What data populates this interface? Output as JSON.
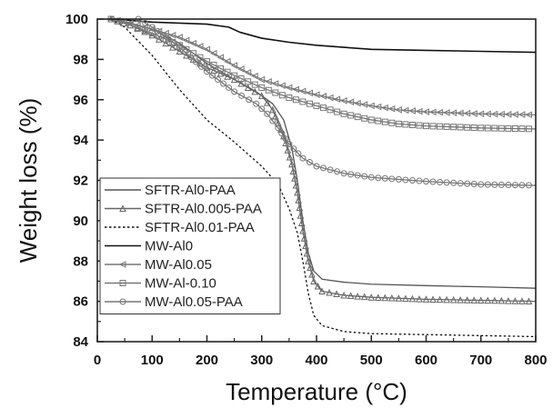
{
  "chart_data": {
    "type": "line",
    "title": "",
    "xlabel": "Temperature (°C)",
    "ylabel": "Weight loss (%)",
    "xlim": [
      0,
      800
    ],
    "ylim": [
      84,
      100
    ],
    "xticks": [
      0,
      100,
      200,
      300,
      400,
      500,
      600,
      700,
      800
    ],
    "yticks": [
      84,
      86,
      88,
      90,
      92,
      94,
      96,
      98,
      100
    ],
    "grid": false,
    "legend": "bottom-left",
    "series": [
      {
        "name": "SFTR-Al0-PAA",
        "color": "#555555",
        "style": "solid",
        "marker": "none",
        "points": [
          [
            25,
            100
          ],
          [
            60,
            99.8
          ],
          [
            100,
            99.5
          ],
          [
            150,
            98.8
          ],
          [
            200,
            97.8
          ],
          [
            250,
            97.0
          ],
          [
            290,
            96.4
          ],
          [
            320,
            95.8
          ],
          [
            340,
            95.0
          ],
          [
            355,
            93.6
          ],
          [
            365,
            92.0
          ],
          [
            375,
            90.0
          ],
          [
            385,
            88.4
          ],
          [
            395,
            87.5
          ],
          [
            410,
            87.1
          ],
          [
            450,
            86.95
          ],
          [
            500,
            86.85
          ],
          [
            600,
            86.78
          ],
          [
            700,
            86.72
          ],
          [
            800,
            86.65
          ]
        ]
      },
      {
        "name": "SFTR-Al0.005-PAA",
        "color": "#666666",
        "style": "solid",
        "marker": "triangle",
        "points": [
          [
            25,
            100
          ],
          [
            60,
            99.7
          ],
          [
            100,
            99.2
          ],
          [
            150,
            98.4
          ],
          [
            200,
            97.6
          ],
          [
            250,
            97.0
          ],
          [
            300,
            96.2
          ],
          [
            320,
            95.5
          ],
          [
            340,
            94.2
          ],
          [
            355,
            92.8
          ],
          [
            365,
            91.4
          ],
          [
            375,
            89.5
          ],
          [
            385,
            88.0
          ],
          [
            395,
            87.0
          ],
          [
            410,
            86.5
          ],
          [
            450,
            86.3
          ],
          [
            500,
            86.2
          ],
          [
            600,
            86.1
          ],
          [
            700,
            86.05
          ],
          [
            800,
            86.0
          ]
        ]
      },
      {
        "name": "SFTR-Al0.01-PAA",
        "color": "#111111",
        "style": "dotted",
        "marker": "none",
        "points": [
          [
            25,
            100
          ],
          [
            50,
            99.6
          ],
          [
            75,
            98.9
          ],
          [
            100,
            98.2
          ],
          [
            150,
            96.5
          ],
          [
            200,
            95.0
          ],
          [
            250,
            93.9
          ],
          [
            300,
            92.7
          ],
          [
            330,
            91.8
          ],
          [
            350,
            90.6
          ],
          [
            365,
            89.4
          ],
          [
            375,
            88.0
          ],
          [
            385,
            86.4
          ],
          [
            395,
            85.3
          ],
          [
            410,
            84.8
          ],
          [
            450,
            84.5
          ],
          [
            500,
            84.4
          ],
          [
            600,
            84.35
          ],
          [
            700,
            84.3
          ],
          [
            800,
            84.25
          ]
        ]
      },
      {
        "name": "MW-Al0",
        "color": "#111111",
        "style": "solid",
        "marker": "none",
        "points": [
          [
            25,
            100
          ],
          [
            100,
            99.85
          ],
          [
            200,
            99.75
          ],
          [
            240,
            99.6
          ],
          [
            260,
            99.35
          ],
          [
            300,
            99.05
          ],
          [
            350,
            98.85
          ],
          [
            400,
            98.7
          ],
          [
            450,
            98.6
          ],
          [
            500,
            98.5
          ],
          [
            600,
            98.45
          ],
          [
            700,
            98.4
          ],
          [
            800,
            98.35
          ]
        ]
      },
      {
        "name": "MW-Al0.05",
        "color": "#777777",
        "style": "solid",
        "marker": "triangle-left",
        "points": [
          [
            25,
            100
          ],
          [
            60,
            99.8
          ],
          [
            100,
            99.5
          ],
          [
            150,
            99.1
          ],
          [
            200,
            98.5
          ],
          [
            250,
            97.7
          ],
          [
            300,
            97.0
          ],
          [
            350,
            96.6
          ],
          [
            400,
            96.25
          ],
          [
            450,
            95.95
          ],
          [
            500,
            95.7
          ],
          [
            550,
            95.5
          ],
          [
            600,
            95.4
          ],
          [
            700,
            95.3
          ],
          [
            800,
            95.25
          ]
        ]
      },
      {
        "name": "MW-Al-0.10",
        "color": "#777777",
        "style": "solid",
        "marker": "square",
        "points": [
          [
            25,
            100
          ],
          [
            60,
            99.7
          ],
          [
            100,
            99.3
          ],
          [
            150,
            98.7
          ],
          [
            200,
            97.9
          ],
          [
            250,
            97.2
          ],
          [
            300,
            96.6
          ],
          [
            350,
            96.1
          ],
          [
            400,
            95.7
          ],
          [
            450,
            95.3
          ],
          [
            500,
            95.0
          ],
          [
            550,
            94.8
          ],
          [
            600,
            94.7
          ],
          [
            700,
            94.6
          ],
          [
            800,
            94.55
          ]
        ]
      },
      {
        "name": "MW-Al0.05-PAA",
        "color": "#777777",
        "style": "solid",
        "marker": "circle",
        "points": [
          [
            75,
            100
          ],
          [
            100,
            99.6
          ],
          [
            150,
            98.6
          ],
          [
            200,
            97.4
          ],
          [
            250,
            96.4
          ],
          [
            290,
            95.8
          ],
          [
            310,
            95.3
          ],
          [
            330,
            94.6
          ],
          [
            350,
            93.8
          ],
          [
            375,
            93.1
          ],
          [
            400,
            92.7
          ],
          [
            450,
            92.35
          ],
          [
            500,
            92.15
          ],
          [
            600,
            91.95
          ],
          [
            700,
            91.8
          ],
          [
            800,
            91.75
          ]
        ]
      }
    ]
  }
}
